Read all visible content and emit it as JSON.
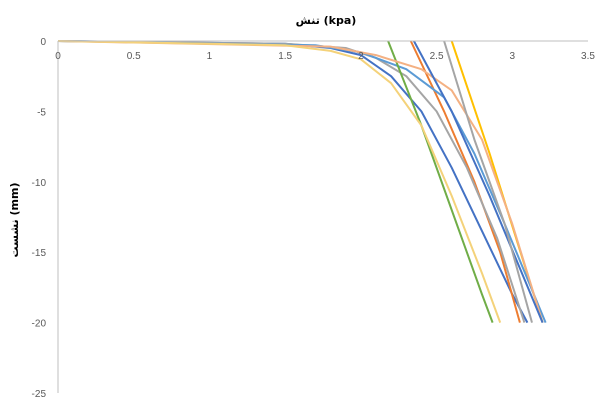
{
  "chart_data": {
    "type": "line",
    "title": "تنش (kpa)",
    "xlabel": "تنش (kpa)",
    "ylabel": "نشست (mm)",
    "xlim": [
      0,
      3.5
    ],
    "ylim": [
      -25,
      0
    ],
    "xticks": [
      "0",
      "0.5",
      "1",
      "1.5",
      "2",
      "2.5",
      "3",
      "3.5"
    ],
    "yticks": [
      "0",
      "-5",
      "-10",
      "-15",
      "-20",
      "-25"
    ],
    "x_axis_position": "top",
    "grid": false,
    "legend": "none",
    "series": [
      {
        "color": "#4472C4",
        "points": [
          [
            0,
            0
          ],
          [
            1.5,
            -0.2
          ],
          [
            1.8,
            -0.5
          ],
          [
            2.0,
            -1.0
          ],
          [
            2.2,
            -2.5
          ],
          [
            2.4,
            -5.0
          ],
          [
            2.6,
            -9.0
          ],
          [
            2.8,
            -13.5
          ],
          [
            3.0,
            -18.0
          ],
          [
            3.1,
            -20.0
          ]
        ]
      },
      {
        "color": "#ED7D31",
        "points": [
          [
            2.33,
            0
          ],
          [
            2.55,
            -5.0
          ],
          [
            2.75,
            -10.0
          ],
          [
            2.92,
            -15.0
          ],
          [
            3.05,
            -20.0
          ]
        ]
      },
      {
        "color": "#A5A5A5",
        "points": [
          [
            0,
            0
          ],
          [
            1.5,
            -0.2
          ],
          [
            1.9,
            -0.5
          ],
          [
            2.1,
            -1.2
          ],
          [
            2.3,
            -2.5
          ],
          [
            2.5,
            -5.0
          ],
          [
            2.7,
            -9.0
          ],
          [
            2.9,
            -14.0
          ],
          [
            3.08,
            -20.0
          ]
        ]
      },
      {
        "color": "#FFC000",
        "points": [
          [
            2.6,
            0
          ],
          [
            2.85,
            -8.0
          ],
          [
            3.2,
            -20.0
          ]
        ]
      },
      {
        "color": "#5B9BD5",
        "points": [
          [
            0,
            0
          ],
          [
            1.7,
            -0.3
          ],
          [
            2.0,
            -0.8
          ],
          [
            2.3,
            -2.0
          ],
          [
            2.55,
            -4.0
          ],
          [
            2.75,
            -8.0
          ],
          [
            2.95,
            -13.0
          ],
          [
            3.22,
            -20.0
          ]
        ]
      },
      {
        "color": "#70AD47",
        "points": [
          [
            2.18,
            0
          ],
          [
            2.4,
            -6.0
          ],
          [
            2.6,
            -12.0
          ],
          [
            2.8,
            -18.0
          ],
          [
            2.87,
            -20.0
          ]
        ]
      },
      {
        "color": "#F4B183",
        "points": [
          [
            0,
            0
          ],
          [
            1.8,
            -0.4
          ],
          [
            2.1,
            -1.0
          ],
          [
            2.4,
            -2.0
          ],
          [
            2.6,
            -3.5
          ],
          [
            2.8,
            -7.0
          ],
          [
            3.0,
            -13.0
          ],
          [
            3.2,
            -20.0
          ]
        ]
      },
      {
        "color": "#4472C4",
        "points": [
          [
            2.35,
            0
          ],
          [
            2.6,
            -5.0
          ],
          [
            2.85,
            -11.0
          ],
          [
            3.2,
            -20.0
          ]
        ]
      },
      {
        "color": "#A5A5A5",
        "points": [
          [
            2.55,
            0
          ],
          [
            2.75,
            -7.0
          ],
          [
            2.95,
            -13.0
          ],
          [
            3.13,
            -20.0
          ]
        ]
      },
      {
        "color": "#F4D27A",
        "points": [
          [
            0,
            0
          ],
          [
            1.5,
            -0.3
          ],
          [
            1.8,
            -0.7
          ],
          [
            2.0,
            -1.3
          ],
          [
            2.2,
            -3.0
          ],
          [
            2.4,
            -6.0
          ],
          [
            2.6,
            -11.0
          ],
          [
            2.8,
            -16.5
          ],
          [
            2.92,
            -20.0
          ]
        ]
      }
    ]
  }
}
